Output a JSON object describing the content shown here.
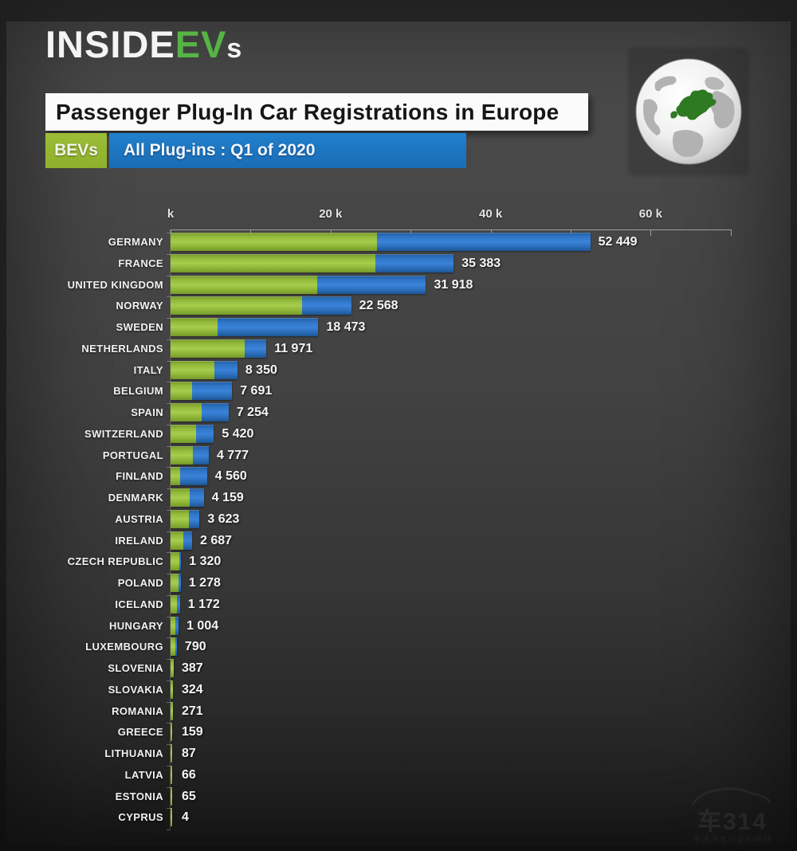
{
  "logo": {
    "part1": "INSIDE",
    "part2": "EV",
    "part3": "s"
  },
  "header": {
    "title": "Passenger Plug-In Car Registrations in Europe"
  },
  "icons": {
    "globe": "globe-europe-icon",
    "watermark_car": "car-silhouette-icon"
  },
  "legend": {
    "bev_label": "BEVs",
    "all_label": "All Plug-ins : Q1 of 2020",
    "bev_color": "#96ba32",
    "all_color": "#2272c2"
  },
  "watermark": {
    "brand": "车314",
    "tagline": "专注汽车行业的网站"
  },
  "chart_data": {
    "type": "bar",
    "orientation": "horizontal",
    "title": "Passenger Plug-In Car Registrations in Europe",
    "subtitle": "Q1 of 2020",
    "categories": [
      "GERMANY",
      "FRANCE",
      "UNITED KINGDOM",
      "NORWAY",
      "SWEDEN",
      "NETHERLANDS",
      "ITALY",
      "BELGIUM",
      "SPAIN",
      "SWITZERLAND",
      "PORTUGAL",
      "FINLAND",
      "DENMARK",
      "AUSTRIA",
      "IRELAND",
      "CZECH REPUBLIC",
      "POLAND",
      "ICELAND",
      "HUNGARY",
      "LUXEMBOURG",
      "SLOVENIA",
      "SLOVAKIA",
      "ROMANIA",
      "GREECE",
      "LITHUANIA",
      "LATVIA",
      "ESTONIA",
      "CYPRUS"
    ],
    "series": [
      {
        "name": "All Plug-ins : Q1 of 2020",
        "color": "#2e74c6",
        "values": [
          52449,
          35383,
          31918,
          22568,
          18473,
          11971,
          8350,
          7691,
          7254,
          5420,
          4777,
          4560,
          4159,
          3623,
          2687,
          1320,
          1278,
          1172,
          1004,
          790,
          387,
          324,
          271,
          159,
          87,
          66,
          65,
          4
        ]
      },
      {
        "name": "BEVs",
        "color": "#96ba32",
        "note": "not labeled in image; estimated from green bar lengths",
        "values": [
          25800,
          25600,
          18300,
          16400,
          5900,
          9300,
          5500,
          2700,
          3900,
          3200,
          2800,
          1200,
          2400,
          2300,
          1600,
          1100,
          950,
          750,
          620,
          560,
          370,
          300,
          260,
          150,
          80,
          60,
          60,
          4
        ]
      }
    ],
    "value_labels": [
      "52 449",
      "35 383",
      "31 918",
      "22 568",
      "18 473",
      "11 971",
      "8 350",
      "7 691",
      "7 254",
      "5 420",
      "4 777",
      "4 560",
      "4 159",
      "3 623",
      "2 687",
      "1 320",
      "1 278",
      "1 172",
      "1 004",
      "790",
      "387",
      "324",
      "271",
      "159",
      "87",
      "66",
      "65",
      "4"
    ],
    "x_axis": {
      "tick_labels": [
        "k",
        "20 k",
        "40 k",
        "60 k"
      ],
      "tick_values": [
        0,
        20000,
        40000,
        60000
      ],
      "minor_tick_step": 10000,
      "range": [
        0,
        70000
      ]
    },
    "legend_position": "top-left",
    "grid": false
  }
}
